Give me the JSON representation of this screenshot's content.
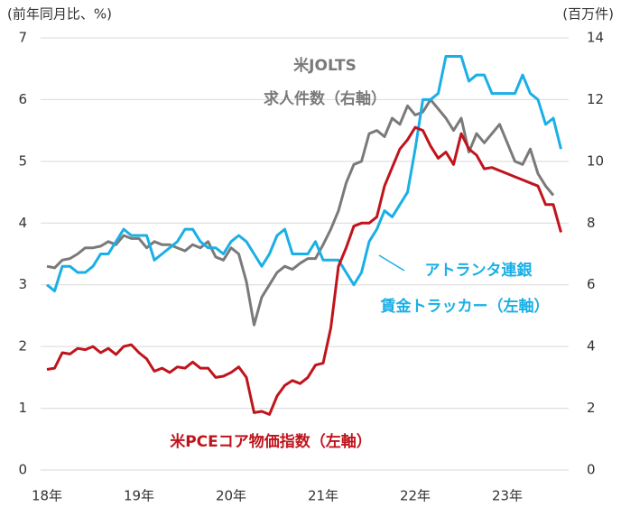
{
  "chart_data": {
    "type": "line",
    "y_label": "(前年同月比、%)",
    "y2_label": "(百万件)",
    "categories": [
      "18年",
      null,
      null,
      null,
      null,
      null,
      null,
      null,
      null,
      null,
      null,
      null,
      "19年",
      null,
      null,
      null,
      null,
      null,
      null,
      null,
      null,
      null,
      null,
      null,
      "20年",
      null,
      null,
      null,
      null,
      null,
      null,
      null,
      null,
      null,
      null,
      null,
      "21年",
      null,
      null,
      null,
      null,
      null,
      null,
      null,
      null,
      null,
      null,
      null,
      "22年",
      null,
      null,
      null,
      null,
      null,
      null,
      null,
      null,
      null,
      null,
      null,
      "23年",
      null,
      null,
      null,
      null,
      null,
      null,
      null
    ],
    "ylim": [
      0,
      7
    ],
    "yticks": [
      0,
      1,
      2,
      3,
      4,
      5,
      6,
      7
    ],
    "y2lim": [
      0,
      14
    ],
    "y2ticks": [
      0,
      2,
      4,
      6,
      8,
      10,
      12,
      14
    ],
    "grid": true,
    "series": [
      {
        "name_lines": [
          "米JOLTS",
          "求人件数（右軸）"
        ],
        "color": "#7a7a7a",
        "axis": "y2",
        "values": [
          6.6,
          6.55,
          6.8,
          6.85,
          7.0,
          7.2,
          7.2,
          7.25,
          7.4,
          7.3,
          7.6,
          7.5,
          7.5,
          7.2,
          7.4,
          7.3,
          7.3,
          7.2,
          7.1,
          7.3,
          7.2,
          7.4,
          6.9,
          6.8,
          7.2,
          7.0,
          6.1,
          4.7,
          5.6,
          6.0,
          6.4,
          6.6,
          6.5,
          6.7,
          6.85,
          6.85,
          7.3,
          7.8,
          8.4,
          9.3,
          9.9,
          10.0,
          10.9,
          11.0,
          10.8,
          11.4,
          11.2,
          11.8,
          11.5,
          11.6,
          12.0,
          11.7,
          11.4,
          11.0,
          11.4,
          10.3,
          10.9,
          10.6,
          10.9,
          11.2,
          10.6,
          10.0,
          9.9,
          10.4,
          9.6,
          9.2,
          8.9,
          null
        ]
      },
      {
        "name_lines": [
          "アトランタ連銀",
          "賃金トラッカー（左軸）"
        ],
        "color": "#1aafe6",
        "axis": "y",
        "values": [
          3.0,
          2.9,
          3.3,
          3.3,
          3.2,
          3.2,
          3.3,
          3.5,
          3.5,
          3.7,
          3.9,
          3.8,
          3.8,
          3.8,
          3.4,
          3.5,
          3.6,
          3.7,
          3.9,
          3.9,
          3.7,
          3.6,
          3.6,
          3.5,
          3.7,
          3.8,
          3.7,
          3.5,
          3.3,
          3.5,
          3.8,
          3.9,
          3.5,
          3.5,
          3.5,
          3.7,
          3.4,
          3.4,
          3.4,
          3.2,
          3.0,
          3.2,
          3.7,
          3.9,
          4.2,
          4.1,
          4.3,
          4.5,
          5.2,
          6.0,
          6.0,
          6.1,
          6.7,
          6.7,
          6.7,
          6.3,
          6.4,
          6.4,
          6.1,
          6.1,
          6.1,
          6.1,
          6.4,
          6.1,
          6.0,
          5.6,
          5.7,
          5.2
        ]
      },
      {
        "name_lines": [
          "米PCEコア物価指数（左軸）"
        ],
        "color": "#c0141c",
        "axis": "y",
        "values": [
          1.63,
          1.65,
          1.9,
          1.88,
          1.97,
          1.95,
          2.0,
          1.9,
          1.97,
          1.87,
          2.0,
          2.03,
          1.9,
          1.8,
          1.6,
          1.65,
          1.58,
          1.67,
          1.65,
          1.75,
          1.65,
          1.65,
          1.5,
          1.52,
          1.58,
          1.67,
          1.5,
          0.93,
          0.95,
          0.9,
          1.2,
          1.37,
          1.45,
          1.4,
          1.5,
          1.7,
          1.73,
          2.3,
          3.3,
          3.6,
          3.95,
          4.0,
          4.0,
          4.1,
          4.6,
          4.9,
          5.2,
          5.35,
          5.55,
          5.5,
          5.25,
          5.05,
          5.15,
          4.95,
          5.45,
          5.2,
          5.1,
          4.88,
          4.9,
          4.85,
          4.8,
          4.75,
          4.7,
          4.65,
          4.6,
          4.3,
          4.3,
          3.85
        ]
      }
    ]
  }
}
